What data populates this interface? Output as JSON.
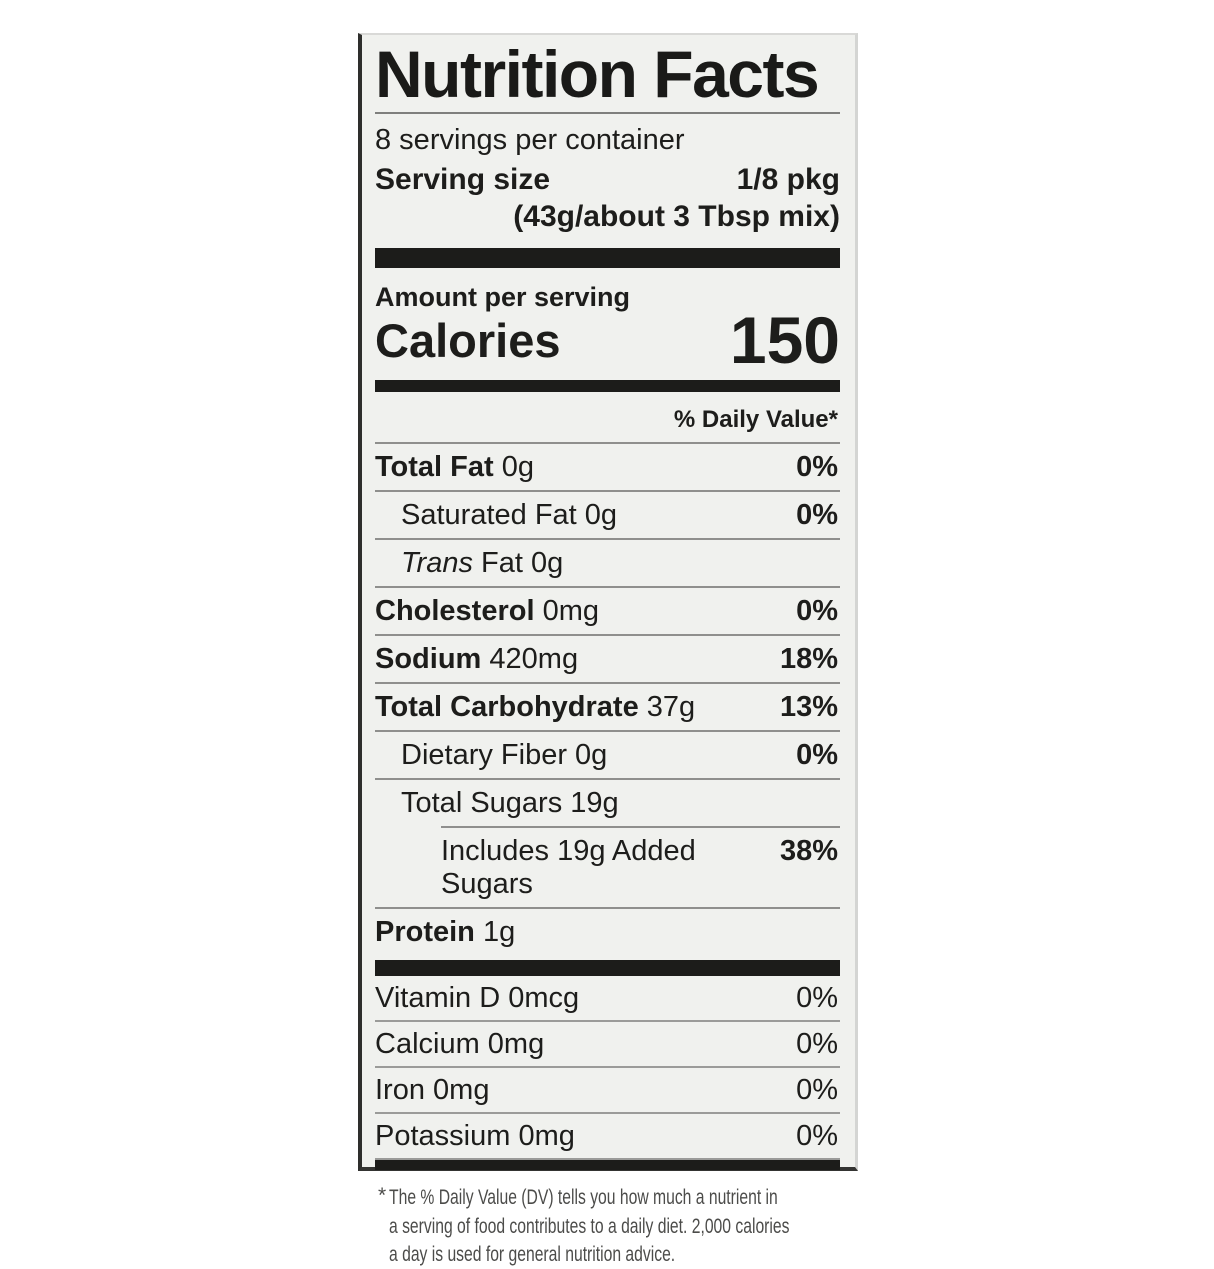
{
  "label": {
    "title": "Nutrition Facts",
    "servings_per_container": "8 servings per container",
    "serving_size_label": "Serving size",
    "serving_size_value": "1/8 pkg",
    "serving_size_detail": "(43g/about 3 Tbsp mix)",
    "amount_per_serving": "Amount per serving",
    "calories_label": "Calories",
    "calories_value": "150",
    "daily_value_header": "% Daily Value*",
    "rows": [
      {
        "name": "Total Fat",
        "amount": " 0g",
        "dv": "0%"
      },
      {
        "name": "Saturated Fat",
        "amount": " 0g",
        "dv": "0%"
      },
      {
        "italic": "Trans",
        "name": " Fat",
        "amount": " 0g",
        "dv": ""
      },
      {
        "name": "Cholesterol",
        "amount": " 0mg",
        "dv": "0%"
      },
      {
        "name": "Sodium",
        "amount": " 420mg",
        "dv": "18%"
      },
      {
        "name": "Total Carbohydrate",
        "amount": " 37g",
        "dv": "13%"
      },
      {
        "name": "Dietary Fiber",
        "amount": " 0g",
        "dv": "0%"
      },
      {
        "name": "Total Sugars",
        "amount": " 19g",
        "dv": ""
      },
      {
        "name": "Includes 19g Added Sugars",
        "amount": "",
        "dv": "38%"
      },
      {
        "name": "Protein",
        "amount": " 1g",
        "dv": ""
      }
    ],
    "vitamins": [
      {
        "name": "Vitamin D 0mcg",
        "dv": "0%"
      },
      {
        "name": "Calcium 0mg",
        "dv": "0%"
      },
      {
        "name": "Iron 0mg",
        "dv": "0%"
      },
      {
        "name": "Potassium 0mg",
        "dv": "0%"
      }
    ],
    "footnote_marker": "*",
    "footnote": "The % Daily Value (DV) tells you how much a nutrient in\na serving of food contributes to a daily diet. 2,000 calories\na day is used for general nutrition advice.",
    "colors": {
      "label_background": "#f0f1ee",
      "text": "#1d1d1b",
      "divider_bar": "#1c1c1a",
      "hairline": "#8f8f8d"
    }
  }
}
